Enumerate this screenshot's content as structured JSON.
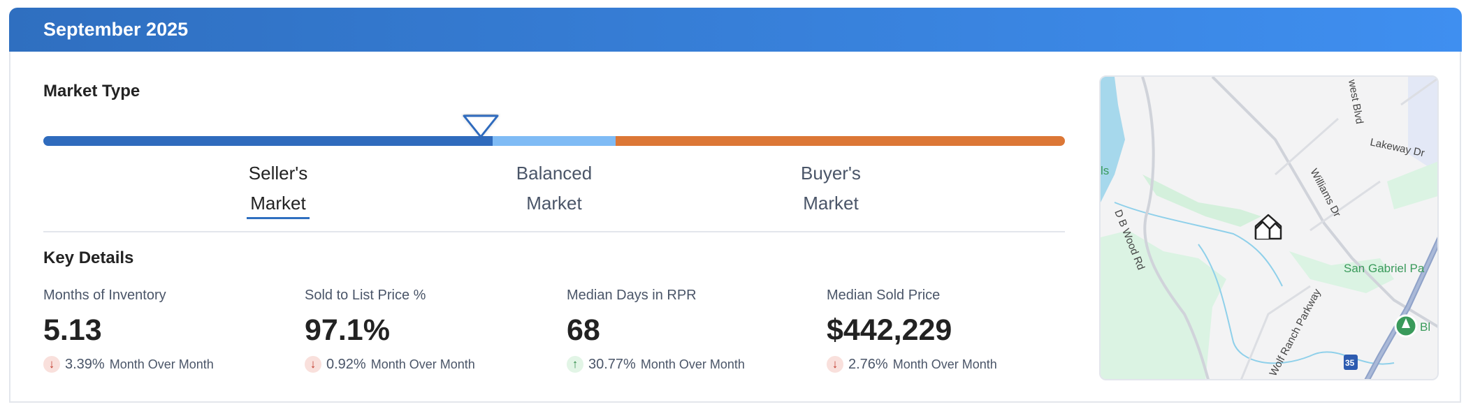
{
  "header": {
    "title": "September 2025"
  },
  "market_type": {
    "title": "Market Type",
    "segments": [
      {
        "name": "seller",
        "color": "#2f6bbd"
      },
      {
        "name": "balanced",
        "color": "#7fbbf5"
      },
      {
        "name": "buyer",
        "color": "#dc7736"
      }
    ],
    "indicator_position_percent": 42,
    "labels": [
      {
        "line1": "Seller's",
        "line2": "Market",
        "active": true
      },
      {
        "line1": "Balanced",
        "line2": "Market",
        "active": false
      },
      {
        "line1": "Buyer's",
        "line2": "Market",
        "active": false
      }
    ]
  },
  "key_details": {
    "title": "Key Details",
    "metrics": [
      {
        "label": "Months of Inventory",
        "value": "5.13",
        "change": "3.39%",
        "direction": "down",
        "period": "Month Over Month"
      },
      {
        "label": "Sold to List Price %",
        "value": "97.1%",
        "change": "0.92%",
        "direction": "down",
        "period": "Month Over Month"
      },
      {
        "label": "Median Days in RPR",
        "value": "68",
        "change": "30.77%",
        "direction": "up",
        "period": "Month Over Month"
      },
      {
        "label": "Median Sold Price",
        "value": "$442,229",
        "change": "2.76%",
        "direction": "down",
        "period": "Month Over Month"
      }
    ]
  },
  "map": {
    "labels": [
      "Lakeway Dr",
      "Williams Dr",
      "D B Wood Rd",
      "San Gabriel Pa",
      "Wolf Ranch Parkway",
      "west Blvd",
      "ls",
      "Bl",
      "35"
    ]
  }
}
